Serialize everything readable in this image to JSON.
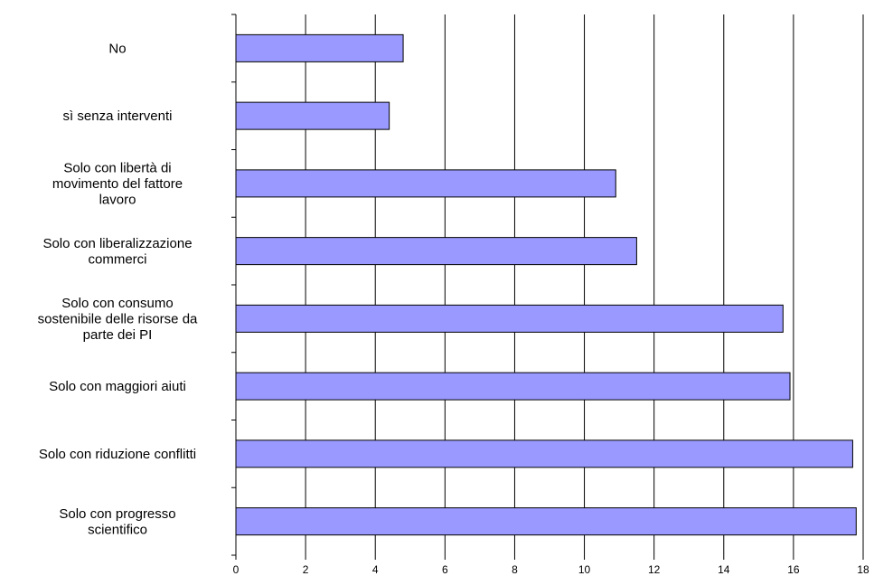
{
  "chart_data": {
    "type": "bar",
    "orientation": "horizontal",
    "categories": [
      "No",
      "sì senza interventi",
      "Solo con libertà di movimento del fattore lavoro",
      "Solo con liberalizzazione commerci",
      "Solo con consumo sostenibile delle risorse da parte dei PI",
      "Solo con maggiori aiuti",
      "Solo con riduzione conflitti",
      "Solo con progresso scientifico"
    ],
    "category_lines": [
      [
        "No"
      ],
      [
        "sì senza interventi"
      ],
      [
        "Solo con libertà di",
        "movimento del fattore",
        "lavoro"
      ],
      [
        "Solo con liberalizzazione",
        "commerci"
      ],
      [
        "Solo con consumo",
        "sostenibile delle risorse da",
        "parte dei PI"
      ],
      [
        "Solo con maggiori aiuti"
      ],
      [
        "Solo con riduzione conflitti"
      ],
      [
        "Solo con progresso",
        "scientifico"
      ]
    ],
    "values": [
      4.8,
      4.4,
      10.9,
      11.5,
      15.7,
      15.9,
      17.7,
      17.8
    ],
    "xlim": [
      0,
      18
    ],
    "xticks": [
      "0",
      "2",
      "4",
      "6",
      "8",
      "10",
      "12",
      "14",
      "16",
      "18"
    ],
    "grid": "vertical",
    "legend": "none",
    "title": "",
    "xlabel": "",
    "ylabel": "",
    "colors": {
      "bar_fill": "#9999FF",
      "bar_stroke": "#000000",
      "grid": "#000000"
    }
  }
}
